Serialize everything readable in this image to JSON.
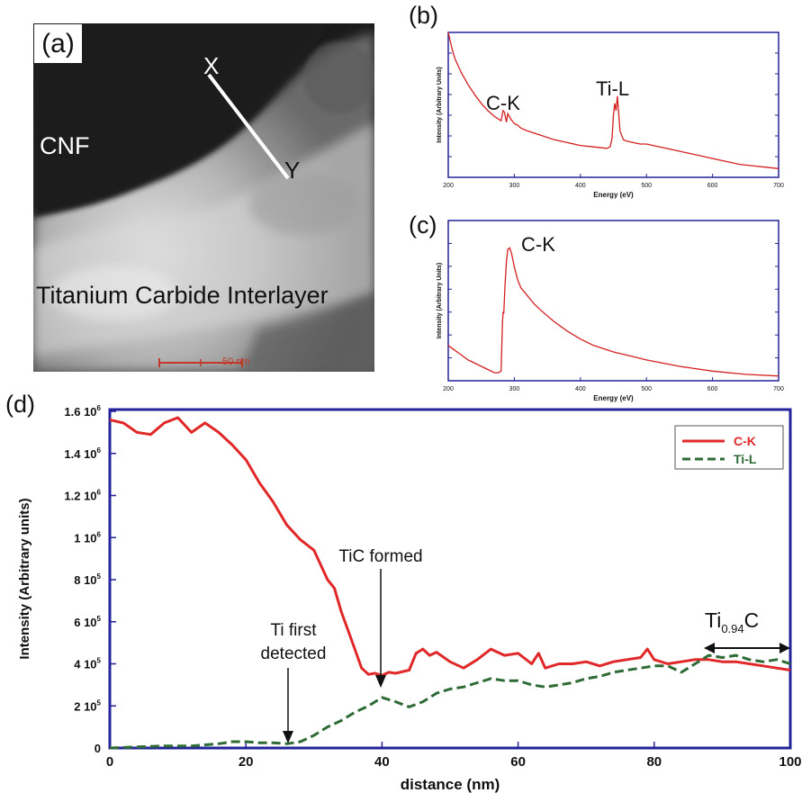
{
  "panel_a": {
    "label": "(a)",
    "point_x": "X",
    "point_y": "Y",
    "region_top": "CNF",
    "region_bottom": "Titanium Carbide Interlayer",
    "scale_bar": "50 nm"
  },
  "chart_data": [
    {
      "panel": "(b)",
      "type": "line",
      "xlabel": "Energy (eV)",
      "ylabel": "Intensity (Arbitrary Units)",
      "xlim": [
        200,
        700
      ],
      "xticks": [
        "200",
        "300",
        "400",
        "500",
        "600",
        "700"
      ],
      "annotations": [
        "C-K",
        "Ti-L"
      ],
      "series": [
        {
          "color": "#d42020",
          "x": [
            200,
            205,
            210,
            220,
            230,
            240,
            250,
            260,
            270,
            280,
            283,
            285,
            288,
            290,
            295,
            300,
            305,
            310,
            320,
            340,
            360,
            380,
            400,
            420,
            440,
            445,
            448,
            450,
            452,
            454,
            456,
            458,
            460,
            465,
            470,
            480,
            490,
            500,
            520,
            540,
            560,
            580,
            600,
            620,
            640,
            660,
            680,
            700
          ],
          "y": [
            1.0,
            0.9,
            0.82,
            0.72,
            0.64,
            0.57,
            0.51,
            0.46,
            0.42,
            0.39,
            0.46,
            0.45,
            0.38,
            0.44,
            0.4,
            0.37,
            0.36,
            0.34,
            0.32,
            0.29,
            0.26,
            0.24,
            0.22,
            0.21,
            0.2,
            0.21,
            0.27,
            0.43,
            0.51,
            0.46,
            0.56,
            0.44,
            0.32,
            0.26,
            0.25,
            0.24,
            0.23,
            0.23,
            0.21,
            0.19,
            0.17,
            0.15,
            0.13,
            0.11,
            0.09,
            0.08,
            0.07,
            0.06
          ]
        }
      ]
    },
    {
      "panel": "(c)",
      "type": "line",
      "xlabel": "Energy (eV)",
      "ylabel": "Intensity (Arbitrary Units)",
      "xlim": [
        200,
        700
      ],
      "xticks": [
        "200",
        "300",
        "400",
        "500",
        "600",
        "700"
      ],
      "annotations": [
        "C-K"
      ],
      "series": [
        {
          "color": "#d42020",
          "x": [
            200,
            210,
            220,
            230,
            240,
            250,
            260,
            270,
            276,
            280,
            282,
            283,
            284,
            286,
            288,
            290,
            293,
            296,
            300,
            305,
            310,
            320,
            330,
            340,
            360,
            380,
            400,
            420,
            450,
            480,
            500,
            550,
            600,
            650,
            700
          ],
          "y": [
            0.22,
            0.19,
            0.16,
            0.13,
            0.11,
            0.09,
            0.07,
            0.05,
            0.05,
            0.06,
            0.36,
            0.43,
            0.42,
            0.6,
            0.74,
            0.82,
            0.83,
            0.79,
            0.71,
            0.63,
            0.58,
            0.53,
            0.48,
            0.44,
            0.37,
            0.31,
            0.26,
            0.22,
            0.18,
            0.15,
            0.13,
            0.09,
            0.06,
            0.04,
            0.03
          ]
        }
      ]
    },
    {
      "panel": "(d)",
      "type": "line",
      "xlabel": "distance (nm)",
      "ylabel": "Intensity (Arbitrary units)",
      "xlim": [
        0,
        100
      ],
      "ylim": [
        0,
        1600000
      ],
      "xticks": [
        "0",
        "20",
        "40",
        "60",
        "80",
        "100"
      ],
      "yticks": [
        {
          "base": "0",
          "exp": ""
        },
        {
          "base": "2 10",
          "exp": "5"
        },
        {
          "base": "4 10",
          "exp": "5"
        },
        {
          "base": "6 10",
          "exp": "5"
        },
        {
          "base": "8 10",
          "exp": "5"
        },
        {
          "base": "1 10",
          "exp": "6"
        },
        {
          "base": "1.2 10",
          "exp": "6"
        },
        {
          "base": "1.4 10",
          "exp": "6"
        },
        {
          "base": "1.6 10",
          "exp": "6"
        }
      ],
      "legend_position": "top-right",
      "annotations": {
        "ti_first": [
          "Ti first",
          "detected"
        ],
        "tic_formed": "TiC formed",
        "tic_base": "Ti",
        "tic_sub": "0.94",
        "tic_tail": "C"
      },
      "series": [
        {
          "name": "C-K",
          "color": "#e02828",
          "style": "solid",
          "x": [
            0,
            2,
            4,
            6,
            8,
            10,
            12,
            14,
            16,
            18,
            20,
            22,
            24,
            26,
            28,
            30,
            32,
            33,
            34,
            36,
            37,
            38,
            39,
            40,
            41,
            42,
            44,
            45,
            46,
            47,
            48,
            50,
            52,
            54,
            56,
            58,
            60,
            62,
            63,
            64,
            66,
            68,
            70,
            72,
            74,
            76,
            78,
            79,
            80,
            82,
            84,
            86,
            88,
            90,
            92,
            94,
            96,
            98,
            100
          ],
          "y": [
            1560000,
            1545000,
            1500000,
            1490000,
            1545000,
            1570000,
            1500000,
            1545000,
            1500000,
            1440000,
            1370000,
            1260000,
            1170000,
            1060000,
            990000,
            940000,
            800000,
            760000,
            650000,
            470000,
            380000,
            350000,
            355000,
            345000,
            360000,
            355000,
            370000,
            450000,
            470000,
            440000,
            455000,
            410000,
            380000,
            420000,
            470000,
            440000,
            450000,
            400000,
            450000,
            380000,
            400000,
            400000,
            410000,
            390000,
            410000,
            420000,
            430000,
            470000,
            420000,
            400000,
            410000,
            420000,
            420000,
            410000,
            410000,
            400000,
            390000,
            380000,
            370000
          ]
        },
        {
          "name": "Ti-L",
          "color": "#2e6b34",
          "style": "dashed",
          "x": [
            0,
            4,
            8,
            12,
            16,
            18,
            20,
            22,
            24,
            26,
            28,
            30,
            32,
            34,
            36,
            38,
            40,
            42,
            44,
            46,
            48,
            50,
            52,
            54,
            56,
            58,
            60,
            62,
            64,
            66,
            68,
            70,
            72,
            74,
            76,
            78,
            80,
            82,
            84,
            86,
            88,
            90,
            92,
            94,
            96,
            98,
            100
          ],
          "y": [
            0,
            5000,
            10000,
            10000,
            20000,
            30000,
            30000,
            25000,
            25000,
            20000,
            30000,
            60000,
            100000,
            130000,
            170000,
            200000,
            240000,
            220000,
            195000,
            220000,
            260000,
            280000,
            290000,
            310000,
            330000,
            320000,
            320000,
            300000,
            290000,
            300000,
            310000,
            330000,
            340000,
            360000,
            370000,
            380000,
            390000,
            390000,
            360000,
            400000,
            440000,
            430000,
            440000,
            420000,
            410000,
            420000,
            400000
          ]
        }
      ]
    }
  ]
}
